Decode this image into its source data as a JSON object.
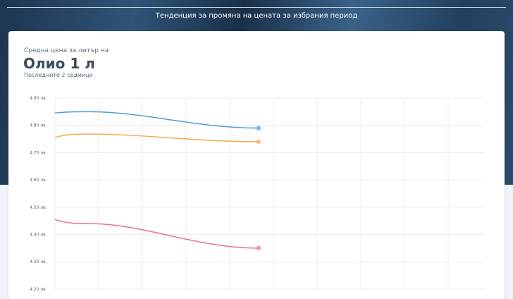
{
  "header": {
    "title": "Тенденция за промяна на цената за избрания период"
  },
  "card": {
    "subtitle": "Средна цена за литър на",
    "product": "Олио 1 л",
    "period": "Последните 2 седмици"
  },
  "chart_data": {
    "type": "line",
    "ylim": [
      4.2,
      4.9
    ],
    "y_ticks": [
      "4.90 лв.",
      "4.80 лв.",
      "4.70 лв.",
      "4.60 лв.",
      "4.50 лв.",
      "4.40 лв.",
      "4.30 лв.",
      "4.20 лв."
    ],
    "grid": true,
    "series": [
      {
        "color": "#4a9fd8",
        "values": [
          4.845,
          4.85,
          4.79
        ]
      },
      {
        "color": "#f5a94e",
        "values": [
          4.755,
          4.768,
          4.74
        ]
      },
      {
        "color": "#ec6f8c",
        "values": [
          4.455,
          4.44,
          4.35
        ]
      }
    ]
  }
}
